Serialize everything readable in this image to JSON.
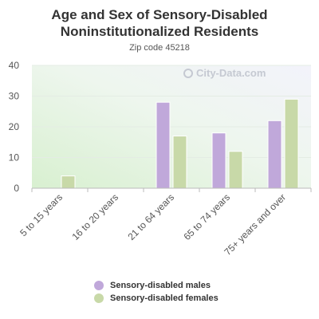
{
  "chart_data": {
    "type": "bar",
    "title": "Age and Sex of Sensory-Disabled Noninstitutionalized Residents",
    "subtitle": "Zip code 45218",
    "categories": [
      "5 to 15 years",
      "16 to 20 years",
      "21 to 64 years",
      "65 to 74 years",
      "75+ years and over"
    ],
    "series": [
      {
        "name": "Sensory-disabled males",
        "color": "#c0a8da",
        "values": [
          0,
          0,
          28,
          18,
          22
        ]
      },
      {
        "name": "Sensory-disabled females",
        "color": "#c8d9a8",
        "values": [
          4,
          0,
          17,
          12,
          29
        ]
      }
    ],
    "ylim": [
      0,
      40
    ],
    "yticks": [
      0,
      10,
      20,
      30,
      40
    ],
    "grid": true,
    "legend": "bottom"
  },
  "watermark": {
    "text": "City-Data.com",
    "icon": "magnifier-icon"
  }
}
